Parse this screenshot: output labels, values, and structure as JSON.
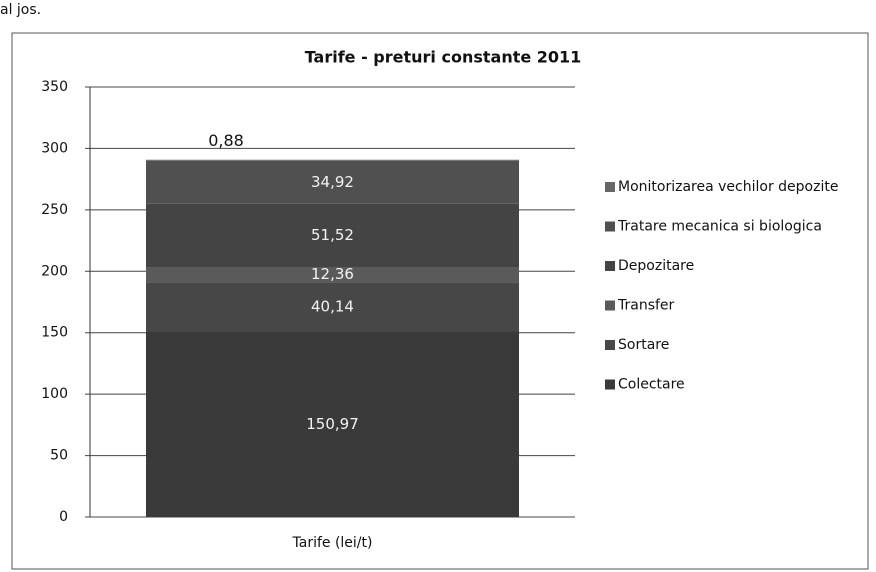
{
  "page_text": "al jos.",
  "chart_data": {
    "type": "stacked_bar",
    "title": "Tarife - preturi constante 2011",
    "categories": [
      "Tarife (lei/t)"
    ],
    "series": [
      {
        "name": "Colectare",
        "color": "#3a3a3a",
        "values": [
          150.97
        ],
        "value_labels": [
          "150,97"
        ]
      },
      {
        "name": "Sortare",
        "color": "#474747",
        "values": [
          40.14
        ],
        "value_labels": [
          "40,14"
        ]
      },
      {
        "name": "Transfer",
        "color": "#5a5a5a",
        "values": [
          12.36
        ],
        "value_labels": [
          "12,36"
        ]
      },
      {
        "name": "Depozitare",
        "color": "#444444",
        "values": [
          51.52
        ],
        "value_labels": [
          "51,52"
        ]
      },
      {
        "name": "Tratare mecanica si biologica",
        "color": "#505050",
        "values": [
          34.92
        ],
        "value_labels": [
          "34,92"
        ]
      },
      {
        "name": "Monitorizarea vechilor depozite",
        "color": "#666666",
        "values": [
          0.88
        ],
        "value_labels": [
          "0,88"
        ]
      }
    ],
    "ylim": [
      0,
      350
    ],
    "yticks": [
      0,
      50,
      100,
      150,
      200,
      250,
      300,
      350
    ],
    "grid": true,
    "legend": "right"
  }
}
